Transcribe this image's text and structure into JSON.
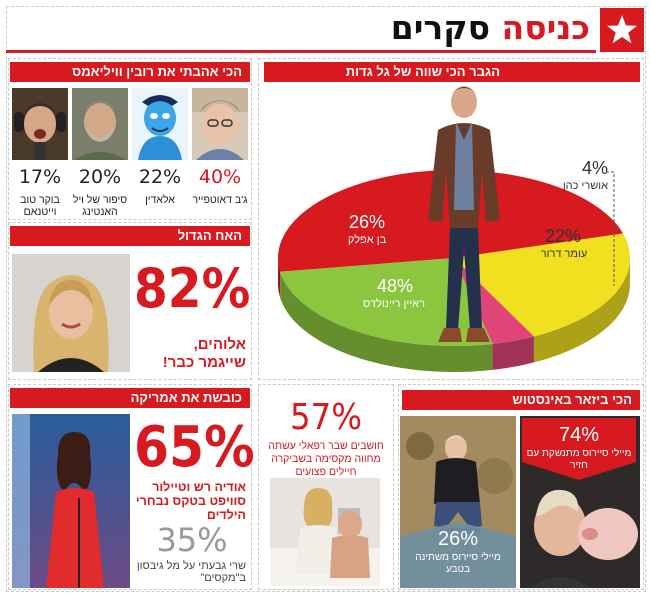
{
  "header": {
    "title_red": "כניסה",
    "title_black": "סקרים"
  },
  "robin": {
    "heading": "הכי אהבתי את רובין וויליאמס",
    "items": [
      {
        "pct": "40%",
        "label": "ג'ב דאוטפייר",
        "pct_color": "#d71920"
      },
      {
        "pct": "22%",
        "label": "אלאדין",
        "pct_color": "#222222"
      },
      {
        "pct": "20%",
        "label": "סיפור של ויל האנטינג",
        "pct_color": "#222222"
      },
      {
        "pct": "17%",
        "label": "בוקר טוב וייטנאם",
        "pct_color": "#222222"
      }
    ]
  },
  "big_brother": {
    "heading": "האח הגדול",
    "pct": "82%",
    "caption_line1": "אלוהים,",
    "caption_line2": "שייגמר כבר!"
  },
  "handsome": {
    "heading": "הגבר הכי שווה של גל גדות",
    "chart_data": {
      "type": "pie",
      "slices": [
        {
          "label": "ראיין ריינולדס",
          "value": 48,
          "color": "#d71920"
        },
        {
          "label": "עומר דרור",
          "value": 22,
          "color": "#f0e020"
        },
        {
          "label": "אושרי כהן",
          "value": 4,
          "color": "#e0457a"
        },
        {
          "label": "בן אפלק",
          "value": 26,
          "color": "#8cc63f"
        }
      ]
    },
    "labels": [
      {
        "pct": "48%",
        "name": "ראיין ריינולדס"
      },
      {
        "pct": "22%",
        "name": "עומר דרור"
      },
      {
        "pct": "4%",
        "name": "אושרי כהן"
      },
      {
        "pct": "26%",
        "name": "בן אפלק"
      }
    ]
  },
  "america": {
    "heading": "כובשת את אמריקה",
    "main_pct": "65%",
    "main_caption": "אודיה רש וטיילור סוויפט בטקס נבחרי הילדים",
    "second_pct": "35%",
    "second_caption": "שרי גבעתי על מל גיבסון ב\"מקסים\""
  },
  "refael": {
    "pct": "57%",
    "caption": "חושבים שבר רפאלי עשתה מחווה מקסימה בשביקרה חיילים פצועים"
  },
  "instagram": {
    "heading": "הכי ביזאר באינסטוש",
    "top_pct": "74%",
    "top_caption": "מיילי סיירוס מתנשקת עם חזיר",
    "bottom_pct": "26%",
    "bottom_caption": "מיילי סיירוס משתינה בטבע"
  }
}
